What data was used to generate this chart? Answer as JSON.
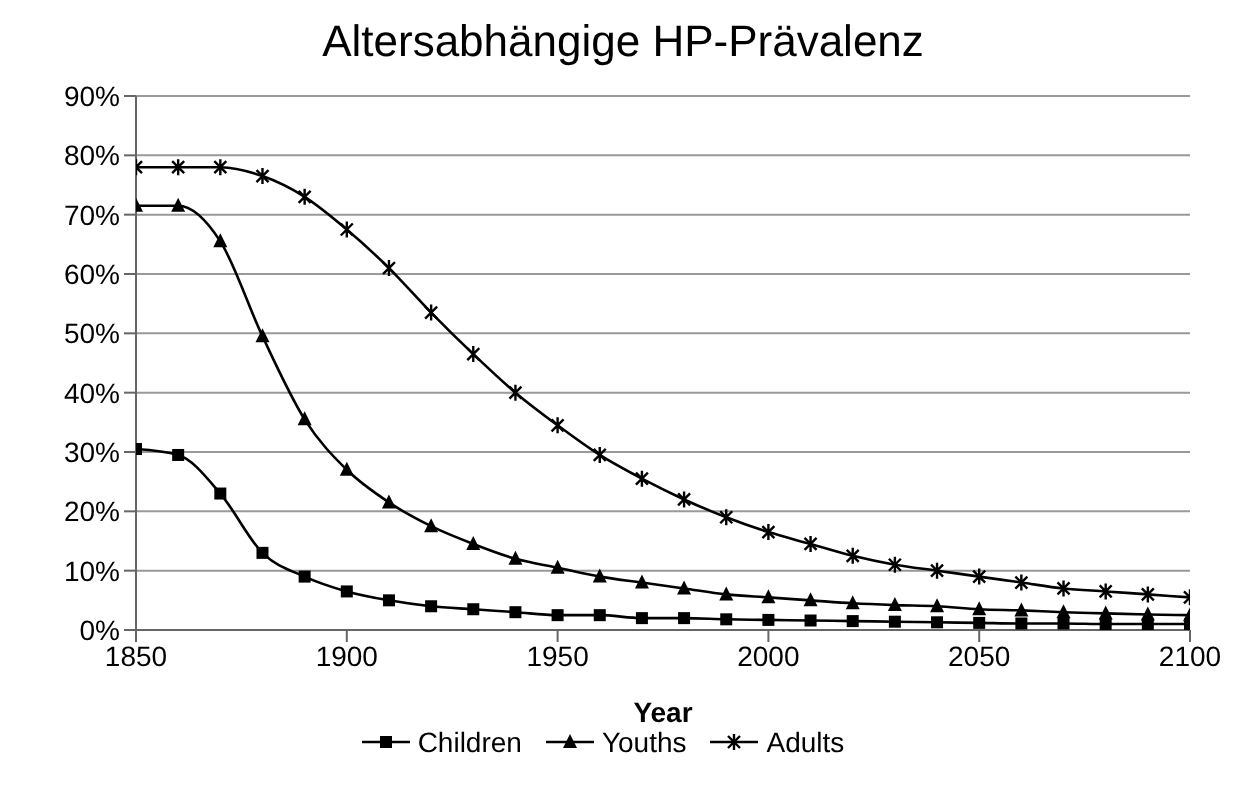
{
  "chart_data": {
    "type": "line",
    "title": "Altersabhängige HP-Prävalenz",
    "xlabel": "Year",
    "x": [
      1850,
      1860,
      1870,
      1880,
      1890,
      1900,
      1910,
      1920,
      1930,
      1940,
      1950,
      1960,
      1970,
      1980,
      1990,
      2000,
      2010,
      2020,
      2030,
      2040,
      2050,
      2060,
      2070,
      2080,
      2090,
      2100
    ],
    "series": [
      {
        "name": "Children",
        "color": "#000000",
        "marker": "square",
        "values": [
          30.5,
          29.5,
          23,
          13,
          9,
          6.5,
          5,
          4,
          3.5,
          3,
          2.5,
          2.5,
          2,
          2,
          1.8,
          1.7,
          1.6,
          1.5,
          1.4,
          1.3,
          1.2,
          1.1,
          1.1,
          1,
          1,
          1
        ]
      },
      {
        "name": "Youths",
        "color": "#000000",
        "marker": "triangle",
        "values": [
          71.5,
          71.5,
          65.5,
          49.5,
          35.5,
          27,
          21.5,
          17.5,
          14.5,
          12,
          10.5,
          9,
          8,
          7,
          6,
          5.5,
          5,
          4.5,
          4.2,
          4,
          3.5,
          3.3,
          3,
          2.8,
          2.6,
          2.5
        ]
      },
      {
        "name": "Adults",
        "color": "#000000",
        "marker": "cross",
        "values": [
          78,
          78,
          78,
          76.5,
          73,
          67.5,
          61,
          53.5,
          46.5,
          40,
          34.5,
          29.5,
          25.5,
          22,
          19,
          16.5,
          14.5,
          12.5,
          11,
          10,
          9,
          8,
          7,
          6.5,
          6,
          5.5
        ]
      }
    ],
    "xlim": [
      1850,
      2100
    ],
    "xticks": [
      1850,
      1900,
      1950,
      2000,
      2050,
      2100
    ],
    "ylim": [
      0,
      90
    ],
    "yticks": [
      {
        "value": 0,
        "label": "0%"
      },
      {
        "value": 10,
        "label": "10%"
      },
      {
        "value": 20,
        "label": "20%"
      },
      {
        "value": 30,
        "label": "30%"
      },
      {
        "value": 40,
        "label": "40%"
      },
      {
        "value": 50,
        "label": "50%"
      },
      {
        "value": 60,
        "label": "60%"
      },
      {
        "value": 70,
        "label": "70%"
      },
      {
        "value": 80,
        "label": "80%"
      },
      {
        "value": 90,
        "label": "90%"
      }
    ],
    "grid": "y",
    "legend": "bottom",
    "line_style": "solid"
  }
}
